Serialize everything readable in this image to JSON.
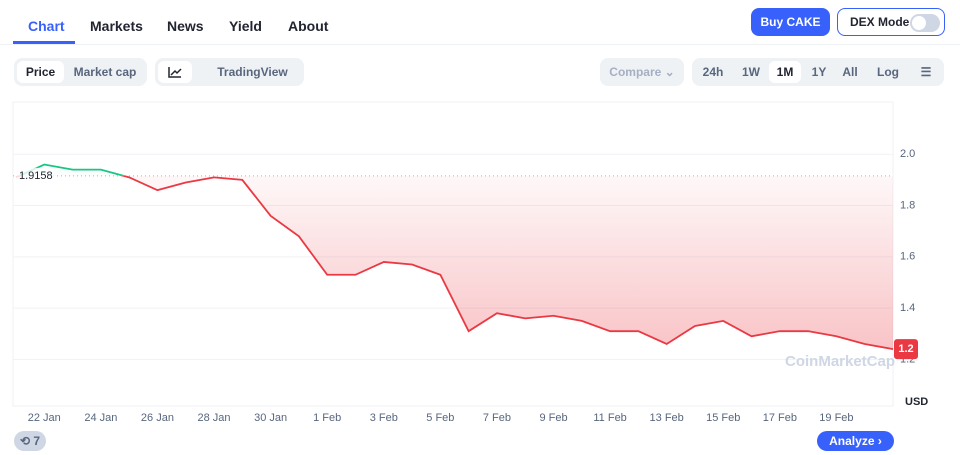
{
  "nav": {
    "tabs": [
      "Chart",
      "Markets",
      "News",
      "Yield",
      "About"
    ],
    "active": 0
  },
  "buttons": {
    "buy": "Buy CAKE",
    "dex": "DEX Mode"
  },
  "toolbar": {
    "metric": [
      "Price",
      "Market cap"
    ],
    "active_metric": 0,
    "view": "TradingView",
    "compare": "Compare",
    "ranges": [
      "24h",
      "1W",
      "1M",
      "1Y",
      "All"
    ],
    "active_range": 2,
    "log": "Log"
  },
  "chart_data": {
    "type": "line",
    "categories": [
      null,
      "22 Jan",
      null,
      "24 Jan",
      null,
      "26 Jan",
      null,
      "28 Jan",
      null,
      "30 Jan",
      null,
      "1 Feb",
      null,
      "3 Feb",
      null,
      "5 Feb",
      null,
      "7 Feb",
      null,
      "9 Feb",
      null,
      "11 Feb",
      null,
      "13 Feb",
      null,
      "15 Feb",
      null,
      "17 Feb",
      null,
      "19 Feb",
      null,
      null
    ],
    "values": [
      1.91,
      1.96,
      1.94,
      1.94,
      1.91,
      1.86,
      1.89,
      1.91,
      1.9,
      1.76,
      1.68,
      1.53,
      1.53,
      1.58,
      1.57,
      1.53,
      1.31,
      1.38,
      1.36,
      1.37,
      1.35,
      1.31,
      1.31,
      1.26,
      1.33,
      1.35,
      1.29,
      1.31,
      1.31,
      1.29,
      1.26,
      1.24
    ],
    "value_labels": [
      null,
      null,
      null,
      null,
      null,
      null,
      null,
      null,
      null,
      null,
      null,
      null,
      null,
      null,
      null,
      null,
      null,
      null,
      null,
      null,
      null,
      null,
      null,
      null,
      null,
      null,
      null,
      null,
      null,
      null,
      null,
      "1.2"
    ],
    "baseline": 1.9158,
    "up_color": "#16c784",
    "down_color": "#ea3943",
    "ylim": [
      1.1,
      2.2
    ],
    "yticks": [
      1.2,
      1.4,
      1.6,
      1.8,
      {
        "value": 2,
        "label": "2.0"
      }
    ],
    "y_unit": "USD",
    "grid": true,
    "watermark": "CoinMarketCap"
  },
  "footer": {
    "badge": "7",
    "analyze": "Analyze"
  }
}
